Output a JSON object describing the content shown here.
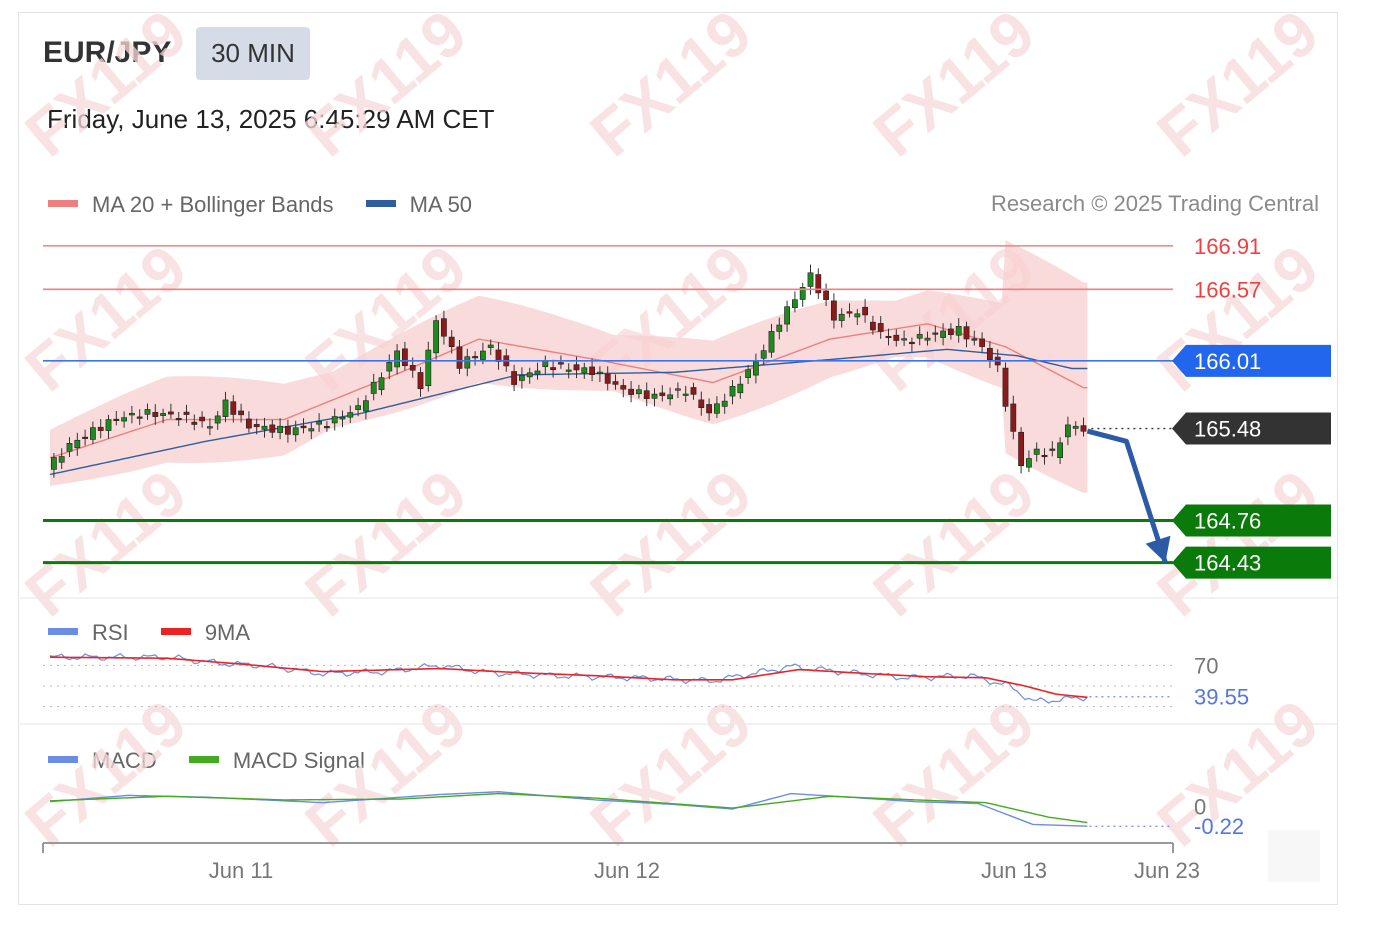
{
  "header": {
    "symbol": "EUR/JPY",
    "timeframe": "30 MIN",
    "datetime": "Friday, June 13, 2025 6:45:29 AM CET",
    "credit": "Research © 2025 Trading Central",
    "watermark": "FX119"
  },
  "legends": {
    "main": [
      {
        "label": "MA 20 + Bollinger Bands",
        "color": "#ef7f7f"
      },
      {
        "label": "MA 50",
        "color": "#2f5d9e"
      }
    ],
    "rsi": [
      {
        "label": "RSI",
        "color": "#6b8de3"
      },
      {
        "label": "9MA",
        "color": "#ee2222"
      }
    ],
    "macd": [
      {
        "label": "MACD",
        "color": "#6b8de3"
      },
      {
        "label": "MACD Signal",
        "color": "#44aa22"
      }
    ]
  },
  "chart_data": [
    {
      "type": "candlestick",
      "title": "EUR/JPY 30 MIN",
      "ylim": [
        164.2,
        167.05
      ],
      "x_tick_labels": [
        "Jun 11",
        "Jun 12",
        "Jun 13",
        "Jun 23"
      ],
      "levels": [
        {
          "value": 166.91,
          "label": "166.91",
          "kind": "resistance",
          "color": "#f04040"
        },
        {
          "value": 166.57,
          "label": "166.57",
          "kind": "resistance",
          "color": "#f04040"
        },
        {
          "value": 166.01,
          "label": "166.01",
          "kind": "pivot",
          "color": "#2266ee"
        },
        {
          "value": 165.48,
          "label": "165.48",
          "kind": "last-price",
          "color": "#333333"
        },
        {
          "value": 164.76,
          "label": "164.76",
          "kind": "support",
          "color": "#0a7a0a"
        },
        {
          "value": 164.43,
          "label": "164.43",
          "kind": "support",
          "color": "#0a7a0a"
        }
      ],
      "price_path": [
        [
          0,
          165.16
        ],
        [
          6,
          165.35
        ],
        [
          12,
          165.46
        ],
        [
          18,
          165.56
        ],
        [
          26,
          165.6
        ],
        [
          34,
          165.58
        ],
        [
          42,
          165.5
        ],
        [
          46,
          165.68
        ],
        [
          52,
          165.5
        ],
        [
          62,
          165.46
        ],
        [
          72,
          165.52
        ],
        [
          80,
          165.64
        ],
        [
          86,
          165.9
        ],
        [
          90,
          166.08
        ],
        [
          96,
          165.82
        ],
        [
          100,
          166.33
        ],
        [
          106,
          165.98
        ],
        [
          114,
          166.12
        ],
        [
          120,
          165.85
        ],
        [
          128,
          165.98
        ],
        [
          134,
          165.95
        ],
        [
          140,
          165.93
        ],
        [
          148,
          165.78
        ],
        [
          156,
          165.73
        ],
        [
          164,
          165.78
        ],
        [
          170,
          165.6
        ],
        [
          176,
          165.78
        ],
        [
          182,
          166.0
        ],
        [
          188,
          166.32
        ],
        [
          196,
          166.68
        ],
        [
          202,
          166.35
        ],
        [
          208,
          166.4
        ],
        [
          214,
          166.22
        ],
        [
          220,
          166.16
        ],
        [
          228,
          166.22
        ],
        [
          234,
          166.25
        ],
        [
          240,
          166.12
        ],
        [
          244,
          165.95
        ],
        [
          247,
          165.55
        ],
        [
          250,
          165.2
        ],
        [
          254,
          165.3
        ],
        [
          258,
          165.28
        ],
        [
          262,
          165.5
        ],
        [
          266,
          165.48
        ]
      ],
      "ma50_path": [
        [
          0,
          165.12
        ],
        [
          40,
          165.38
        ],
        [
          80,
          165.6
        ],
        [
          120,
          165.9
        ],
        [
          160,
          165.92
        ],
        [
          200,
          166.02
        ],
        [
          230,
          166.1
        ],
        [
          248,
          166.05
        ],
        [
          262,
          165.95
        ]
      ],
      "ma20_path": [
        [
          0,
          165.25
        ],
        [
          30,
          165.55
        ],
        [
          60,
          165.55
        ],
        [
          90,
          165.92
        ],
        [
          110,
          166.18
        ],
        [
          140,
          166.02
        ],
        [
          170,
          165.84
        ],
        [
          200,
          166.18
        ],
        [
          225,
          166.3
        ],
        [
          245,
          166.12
        ],
        [
          265,
          165.8
        ]
      ],
      "projection": [
        [
          266,
          165.46
        ],
        [
          276,
          165.38
        ],
        [
          286,
          164.43
        ]
      ]
    },
    {
      "type": "line",
      "title": "RSI",
      "ylim": [
        15,
        85
      ],
      "reference_levels": [
        {
          "value": 70,
          "label": "70"
        },
        {
          "value": 50,
          "label": ""
        },
        {
          "value": 30,
          "label": ""
        }
      ],
      "last_value": {
        "value": 39.55,
        "label": "39.55"
      },
      "series": [
        {
          "name": "RSI",
          "color": "#6b8de3",
          "points": [
            [
              0,
              78
            ],
            [
              30,
              78
            ],
            [
              44,
              72
            ],
            [
              54,
              70
            ],
            [
              70,
              62
            ],
            [
              86,
              64
            ],
            [
              100,
              70
            ],
            [
              112,
              63
            ],
            [
              130,
              60
            ],
            [
              150,
              58
            ],
            [
              170,
              55
            ],
            [
              190,
              69
            ],
            [
              205,
              63
            ],
            [
              220,
              58
            ],
            [
              236,
              60
            ],
            [
              246,
              50
            ],
            [
              252,
              35
            ],
            [
              260,
              37
            ],
            [
              266,
              39.55
            ]
          ]
        },
        {
          "name": "9MA",
          "color": "#ee2222",
          "points": [
            [
              0,
              78
            ],
            [
              30,
              77
            ],
            [
              50,
              71
            ],
            [
              70,
              64
            ],
            [
              100,
              67
            ],
            [
              120,
              63
            ],
            [
              140,
              60
            ],
            [
              160,
              56
            ],
            [
              175,
              56
            ],
            [
              192,
              66
            ],
            [
              210,
              62
            ],
            [
              225,
              59
            ],
            [
              240,
              58
            ],
            [
              250,
              50
            ],
            [
              258,
              42
            ],
            [
              266,
              39
            ]
          ]
        }
      ]
    },
    {
      "type": "line",
      "title": "MACD",
      "ylim": [
        -0.35,
        0.4
      ],
      "reference_levels": [
        {
          "value": 0,
          "label": "0"
        }
      ],
      "last_value": {
        "value": -0.22,
        "label": "-0.22"
      },
      "series": [
        {
          "name": "MACD",
          "color": "#6b8de3",
          "points": [
            [
              0,
              0.05
            ],
            [
              20,
              0.12
            ],
            [
              40,
              0.1
            ],
            [
              70,
              0.04
            ],
            [
              100,
              0.13
            ],
            [
              115,
              0.16
            ],
            [
              140,
              0.07
            ],
            [
              160,
              0.02
            ],
            [
              175,
              -0.03
            ],
            [
              190,
              0.14
            ],
            [
              205,
              0.1
            ],
            [
              222,
              0.05
            ],
            [
              238,
              0.03
            ],
            [
              252,
              -0.2
            ],
            [
              266,
              -0.22
            ]
          ]
        },
        {
          "name": "MACD Signal",
          "color": "#44aa22",
          "points": [
            [
              0,
              0.06
            ],
            [
              30,
              0.11
            ],
            [
              60,
              0.07
            ],
            [
              90,
              0.08
            ],
            [
              115,
              0.14
            ],
            [
              140,
              0.09
            ],
            [
              175,
              -0.02
            ],
            [
              200,
              0.11
            ],
            [
              222,
              0.07
            ],
            [
              240,
              0.04
            ],
            [
              256,
              -0.12
            ],
            [
              266,
              -0.18
            ]
          ]
        }
      ]
    }
  ]
}
